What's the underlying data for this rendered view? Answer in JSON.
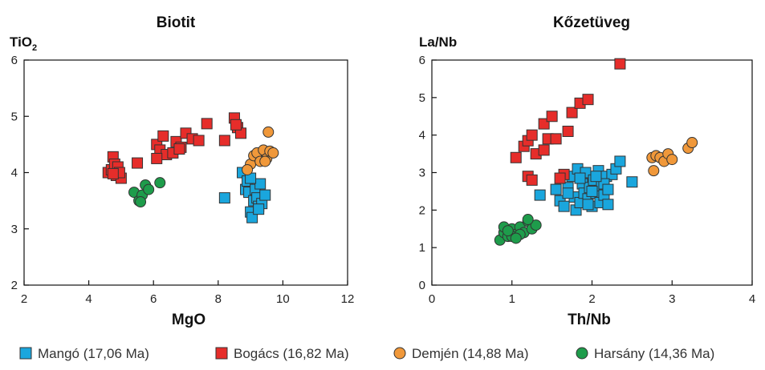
{
  "colors": {
    "mango": "#1aa6dd",
    "bogacs": "#e62d2a",
    "demjen": "#f0983a",
    "harsany": "#1e9c4b",
    "axis": "#111111"
  },
  "legend": [
    {
      "series": "mango",
      "label": "Mangó (17,06 Ma)",
      "marker": "square"
    },
    {
      "series": "bogacs",
      "label": "Bogács (16,82 Ma)",
      "marker": "square"
    },
    {
      "series": "demjen",
      "label": "Demjén (14,88 Ma)",
      "marker": "circle"
    },
    {
      "series": "harsany",
      "label": "Harsány (14,36 Ma)",
      "marker": "circle"
    }
  ],
  "chart_data": [
    {
      "type": "scatter",
      "title": "Biotit",
      "xlabel": "MgO",
      "ylabel_main": "TiO",
      "ylabel_sub": "2",
      "xlim": [
        2,
        12
      ],
      "ylim": [
        2,
        6
      ],
      "xticks": [
        2,
        4,
        6,
        8,
        10,
        12
      ],
      "yticks": [
        2,
        3,
        4,
        5,
        6
      ],
      "series": [
        {
          "key": "mango",
          "name": "Mangó (17,06 Ma)",
          "marker": "square",
          "x": [
            8.2,
            8.75,
            8.85,
            8.9,
            8.95,
            9.0,
            9.05,
            9.1,
            9.15,
            9.2,
            9.25,
            9.3,
            9.35,
            9.45,
            9.0,
            9.25
          ],
          "y": [
            3.55,
            4.0,
            3.7,
            3.85,
            3.65,
            3.3,
            3.2,
            3.5,
            3.7,
            3.55,
            3.4,
            3.8,
            3.45,
            3.6,
            3.9,
            3.35
          ]
        },
        {
          "key": "bogacs",
          "name": "Bogács (16,82 Ma)",
          "marker": "square",
          "x": [
            4.6,
            4.7,
            4.75,
            4.8,
            4.85,
            4.9,
            5.0,
            4.95,
            5.5,
            6.1,
            6.2,
            6.3,
            6.4,
            6.6,
            6.7,
            6.85,
            7.0,
            7.2,
            7.4,
            7.65,
            8.2,
            8.5,
            8.6,
            8.7,
            4.75,
            6.1,
            6.8,
            8.55
          ],
          "y": [
            4.0,
            4.05,
            4.28,
            4.15,
            3.95,
            4.1,
            3.9,
            4.0,
            4.17,
            4.5,
            4.4,
            4.65,
            4.32,
            4.35,
            4.55,
            4.45,
            4.7,
            4.6,
            4.57,
            4.87,
            4.57,
            4.97,
            4.8,
            4.7,
            3.98,
            4.25,
            4.42,
            4.85
          ]
        },
        {
          "key": "demjen",
          "name": "Demjén (14,88 Ma)",
          "marker": "circle",
          "x": [
            9.0,
            9.1,
            9.2,
            9.3,
            9.4,
            9.5,
            9.55,
            9.6,
            9.7,
            8.9,
            9.45
          ],
          "y": [
            4.15,
            4.3,
            4.35,
            4.2,
            4.4,
            4.25,
            4.72,
            4.38,
            4.35,
            4.05,
            4.2
          ]
        },
        {
          "key": "harsany",
          "name": "Harsány (14,36 Ma)",
          "marker": "circle",
          "x": [
            5.4,
            5.55,
            5.65,
            5.75,
            5.85,
            6.2,
            5.6
          ],
          "y": [
            3.65,
            3.5,
            3.6,
            3.78,
            3.7,
            3.82,
            3.48
          ]
        }
      ]
    },
    {
      "type": "scatter",
      "title": "Kőzetüveg",
      "xlabel": "Th/Nb",
      "ylabel_main": "La/Nb",
      "ylabel_sub": "",
      "xlim": [
        0,
        4
      ],
      "ylim": [
        0,
        6
      ],
      "xticks": [
        0,
        1,
        2,
        3,
        4
      ],
      "yticks": [
        0,
        1,
        2,
        3,
        4,
        5,
        6
      ],
      "series": [
        {
          "key": "mango",
          "name": "Mangó (17,06 Ma)",
          "marker": "square",
          "x": [
            1.35,
            1.55,
            1.6,
            1.65,
            1.7,
            1.75,
            1.78,
            1.8,
            1.82,
            1.85,
            1.88,
            1.9,
            1.92,
            1.95,
            1.97,
            2.0,
            2.02,
            2.05,
            2.08,
            2.1,
            2.12,
            2.15,
            2.18,
            2.2,
            2.25,
            2.3,
            2.35,
            2.5,
            1.7,
            1.85,
            2.0,
            2.15,
            1.95,
            2.05,
            2.2
          ],
          "y": [
            2.4,
            2.55,
            2.25,
            2.1,
            2.6,
            2.9,
            2.35,
            2.0,
            3.1,
            2.2,
            2.7,
            2.45,
            3.0,
            2.3,
            2.6,
            2.1,
            2.8,
            2.45,
            3.05,
            2.2,
            2.65,
            2.4,
            2.9,
            2.15,
            2.95,
            3.1,
            3.3,
            2.75,
            2.45,
            2.85,
            2.5,
            2.7,
            2.15,
            2.9,
            2.55
          ]
        },
        {
          "key": "bogacs",
          "name": "Bogács (16,82 Ma)",
          "marker": "square",
          "x": [
            1.05,
            1.15,
            1.2,
            1.25,
            1.3,
            1.4,
            1.45,
            1.5,
            1.55,
            1.65,
            1.7,
            1.75,
            1.85,
            1.95,
            2.35,
            1.2,
            1.25,
            1.6,
            1.4
          ],
          "y": [
            3.4,
            3.7,
            3.85,
            4.0,
            3.5,
            4.3,
            3.9,
            4.5,
            3.9,
            2.95,
            4.1,
            4.6,
            4.85,
            4.95,
            5.9,
            2.9,
            2.8,
            2.85,
            3.6
          ]
        },
        {
          "key": "demjen",
          "name": "Demjén (14,88 Ma)",
          "marker": "circle",
          "x": [
            2.75,
            2.8,
            2.85,
            2.9,
            2.95,
            3.0,
            3.2,
            3.25,
            2.77
          ],
          "y": [
            3.4,
            3.45,
            3.4,
            3.3,
            3.5,
            3.35,
            3.65,
            3.8,
            3.05
          ]
        },
        {
          "key": "harsany",
          "name": "Harsány (14,36 Ma)",
          "marker": "circle",
          "x": [
            0.85,
            0.9,
            0.95,
            1.0,
            1.05,
            1.1,
            1.15,
            1.2,
            1.25,
            1.3,
            0.9,
            1.0,
            1.1,
            1.2,
            0.95,
            1.05
          ],
          "y": [
            1.2,
            1.4,
            1.3,
            1.5,
            1.35,
            1.55,
            1.4,
            1.7,
            1.5,
            1.6,
            1.55,
            1.3,
            1.35,
            1.75,
            1.45,
            1.25
          ]
        }
      ]
    }
  ]
}
